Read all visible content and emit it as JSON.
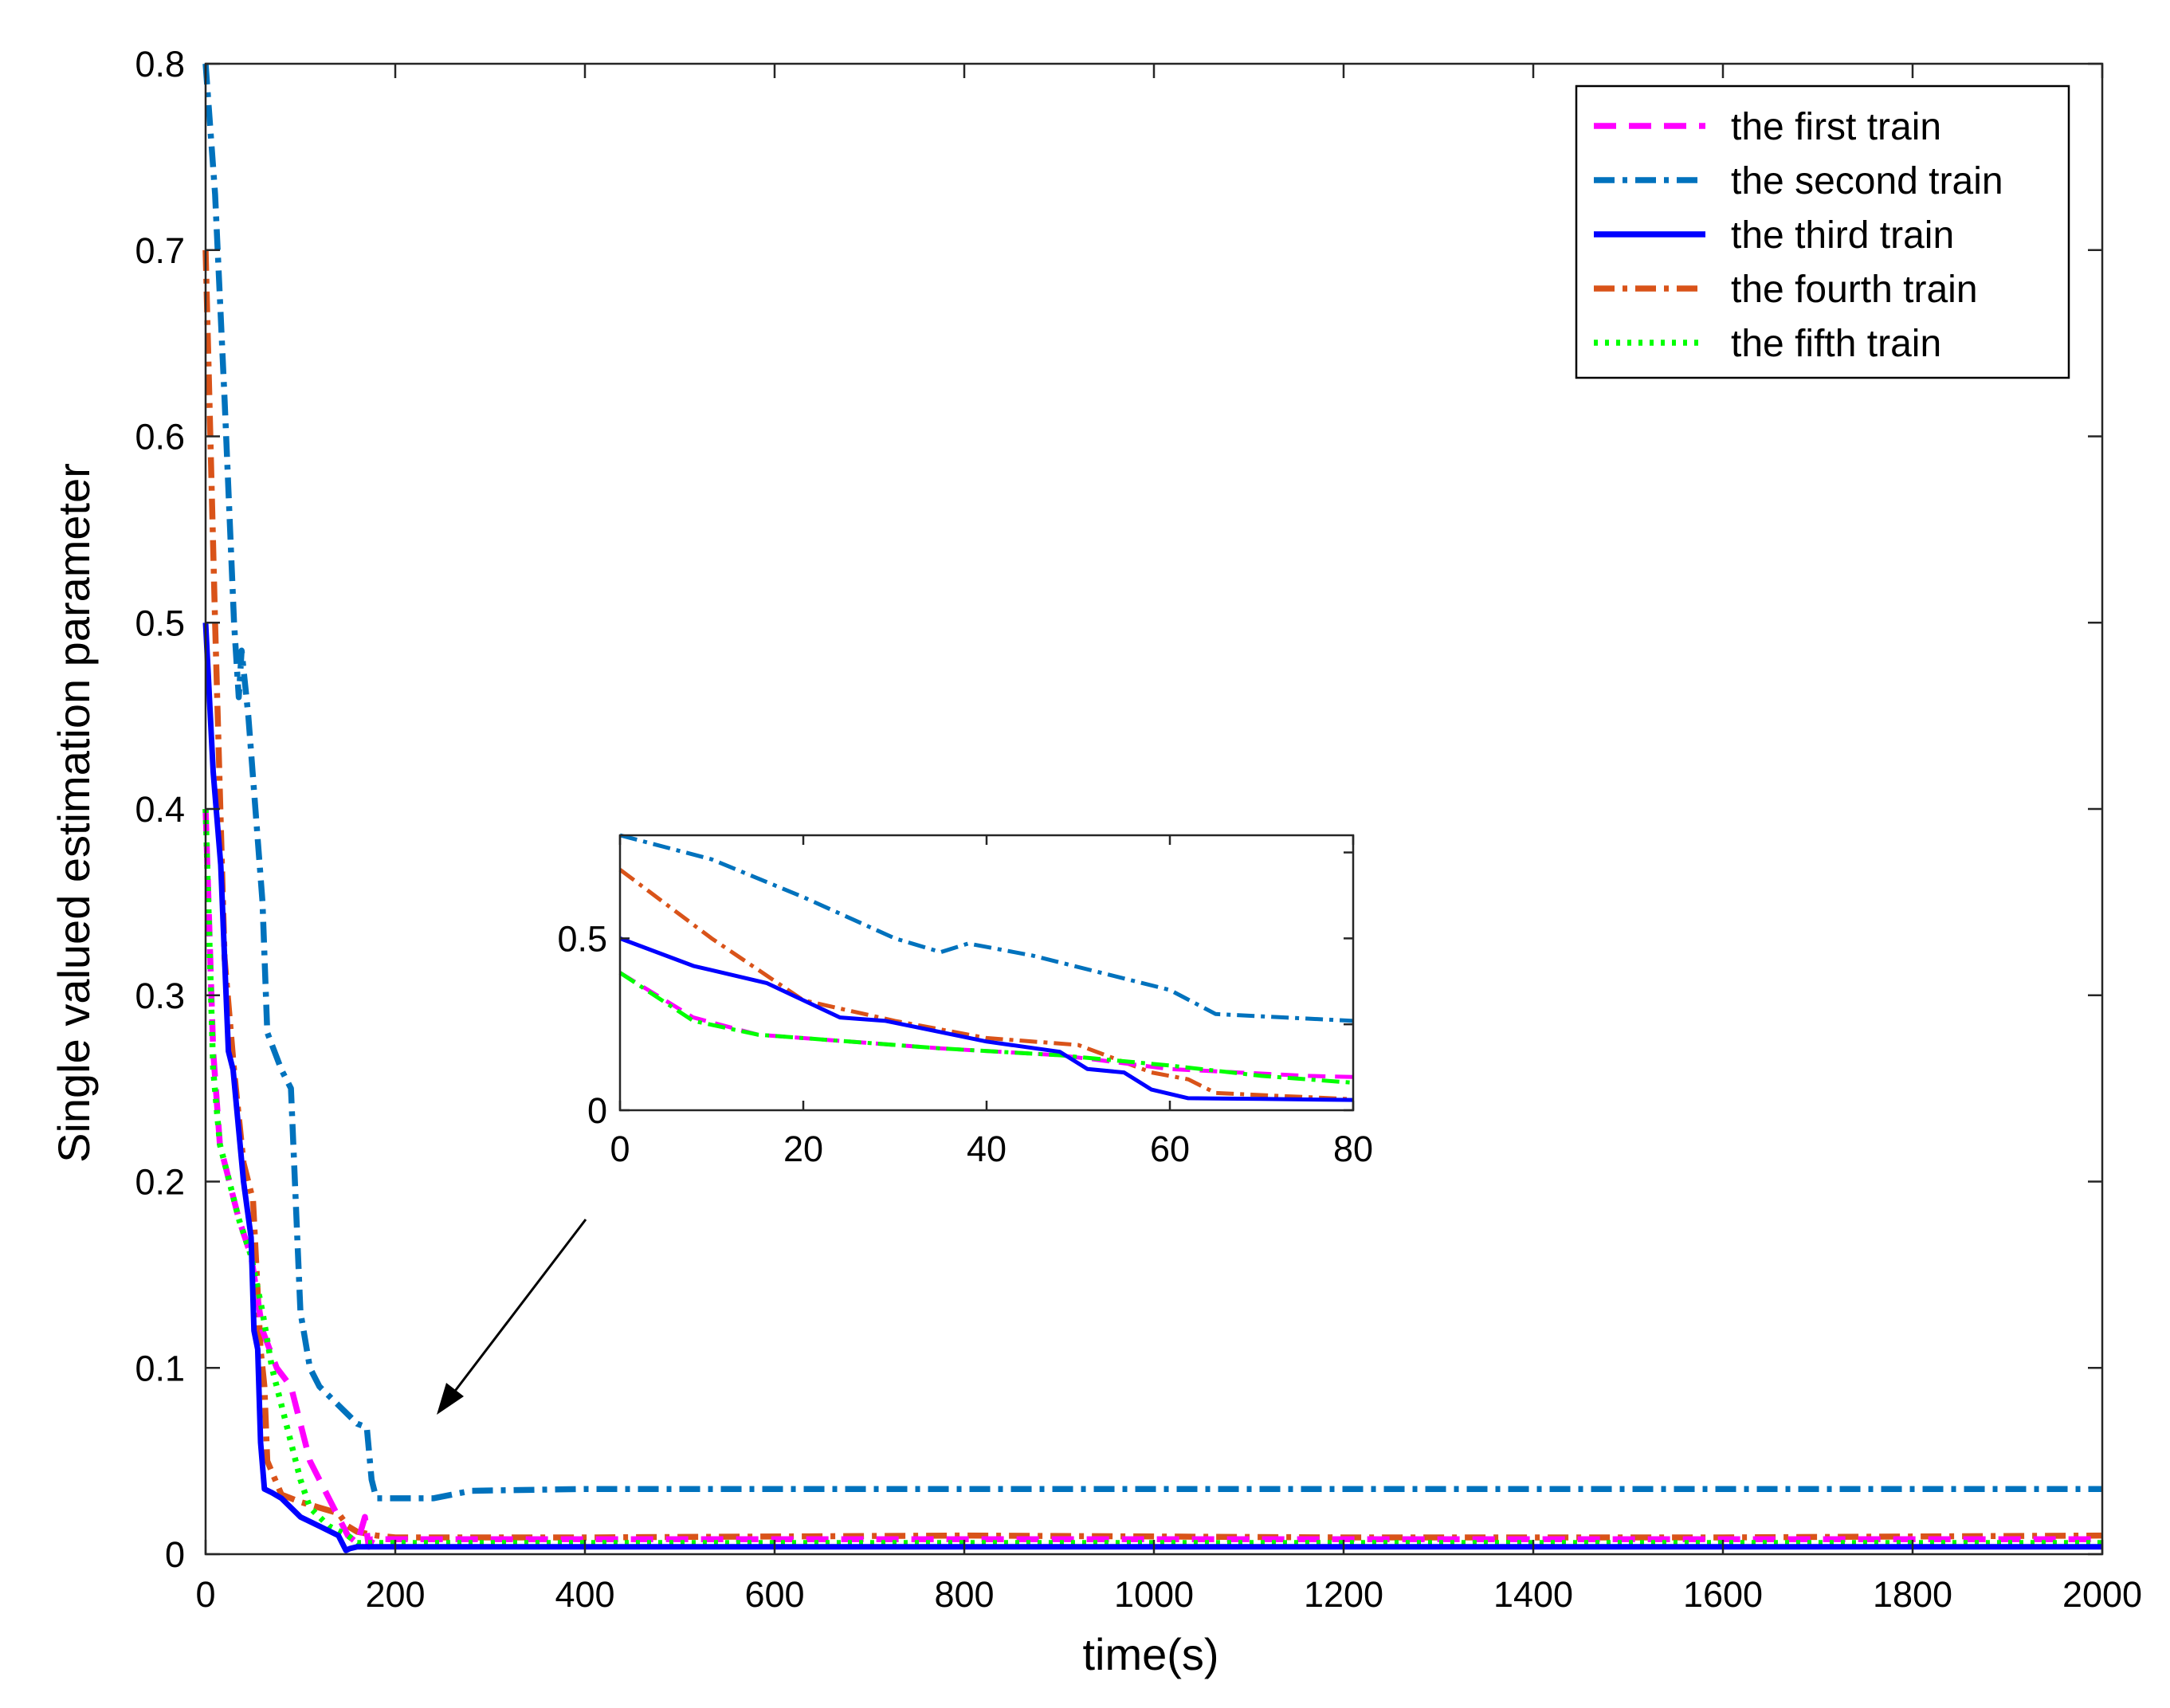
{
  "chart_data": {
    "type": "line",
    "xlabel": "time(s)",
    "ylabel": "Single valued estimation parameter",
    "xlim": [
      0,
      2000
    ],
    "ylim": [
      0,
      0.8
    ],
    "xticks": [
      0,
      200,
      400,
      600,
      800,
      1000,
      1200,
      1400,
      1600,
      1800,
      2000
    ],
    "xtick_labels": [
      "0",
      "200",
      "400",
      "600",
      "800",
      "1000",
      "1200",
      "1400",
      "1600",
      "1800",
      "2000"
    ],
    "yticks": [
      0,
      0.1,
      0.2,
      0.3,
      0.4,
      0.5,
      0.6,
      0.7,
      0.8
    ],
    "ytick_labels": [
      "0",
      "0.1",
      "0.2",
      "0.3",
      "0.4",
      "0.5",
      "0.6",
      "0.7",
      "0.8"
    ],
    "legend_position": "top-right",
    "series": [
      {
        "name": "the first train",
        "label": "the first train",
        "color": "#ff00ff",
        "style": "dashed",
        "x": [
          0,
          8,
          15,
          25,
          35,
          48,
          60,
          75,
          90,
          110,
          130,
          150,
          160,
          168,
          172,
          176,
          200,
          400,
          800,
          1200,
          1600,
          2000
        ],
        "y": [
          0.4,
          0.27,
          0.22,
          0.2,
          0.18,
          0.16,
          0.12,
          0.1,
          0.09,
          0.05,
          0.03,
          0.01,
          0.006,
          0.02,
          0.004,
          0.008,
          0.008,
          0.008,
          0.008,
          0.008,
          0.008,
          0.008
        ]
      },
      {
        "name": "the second train",
        "label": "the second train",
        "color": "#0072bd",
        "style": "dashdot",
        "x": [
          0,
          10,
          20,
          30,
          35,
          38,
          45,
          60,
          65,
          80,
          90,
          100,
          110,
          120,
          140,
          160,
          170,
          175,
          180,
          200,
          240,
          280,
          400,
          800,
          1200,
          1600,
          2000
        ],
        "y": [
          0.8,
          0.73,
          0.62,
          0.5,
          0.46,
          0.485,
          0.45,
          0.35,
          0.28,
          0.26,
          0.25,
          0.13,
          0.1,
          0.09,
          0.08,
          0.07,
          0.068,
          0.04,
          0.03,
          0.03,
          0.03,
          0.034,
          0.035,
          0.035,
          0.035,
          0.035,
          0.035
        ]
      },
      {
        "name": "the third train",
        "label": "the third train",
        "color": "#0000ff",
        "style": "solid",
        "x": [
          0,
          8,
          16,
          24,
          29,
          40,
          48,
          51,
          55,
          58,
          62,
          70,
          80,
          100,
          120,
          140,
          148,
          152,
          160,
          200,
          400,
          800,
          1200,
          1600,
          2000
        ],
        "y": [
          0.5,
          0.42,
          0.37,
          0.27,
          0.26,
          0.2,
          0.17,
          0.12,
          0.11,
          0.06,
          0.035,
          0.033,
          0.03,
          0.02,
          0.015,
          0.01,
          0.002,
          0.003,
          0.004,
          0.004,
          0.004,
          0.004,
          0.004,
          0.004,
          0.004
        ]
      },
      {
        "name": "the fourth train",
        "label": "the fourth train",
        "color": "#d95319",
        "style": "dashdot",
        "x": [
          0,
          10,
          20,
          30,
          40,
          50,
          58,
          62,
          65,
          80,
          100,
          120,
          140,
          150,
          160,
          180,
          200,
          400,
          800,
          1200,
          1600,
          2000
        ],
        "y": [
          0.7,
          0.5,
          0.32,
          0.26,
          0.21,
          0.19,
          0.11,
          0.09,
          0.05,
          0.032,
          0.028,
          0.025,
          0.022,
          0.015,
          0.012,
          0.01,
          0.009,
          0.009,
          0.01,
          0.009,
          0.009,
          0.01
        ]
      },
      {
        "name": "the fifth train",
        "label": "the fifth train",
        "color": "#00ff00",
        "style": "dotted",
        "x": [
          0,
          8,
          15,
          25,
          35,
          48,
          60,
          70,
          80,
          90,
          100,
          110,
          130,
          150,
          160,
          200,
          400,
          800,
          1200,
          1600,
          2000
        ],
        "y": [
          0.4,
          0.26,
          0.22,
          0.2,
          0.18,
          0.16,
          0.13,
          0.1,
          0.08,
          0.06,
          0.04,
          0.025,
          0.015,
          0.01,
          0.006,
          0.006,
          0.006,
          0.006,
          0.006,
          0.006,
          0.006
        ]
      }
    ],
    "inset": {
      "xlim": [
        0,
        80
      ],
      "ylim": [
        0,
        0.8
      ],
      "xticks": [
        0,
        20,
        40,
        60,
        80
      ],
      "xtick_labels": [
        "0",
        "20",
        "40",
        "60",
        "80"
      ],
      "yticks": [
        0,
        0.5
      ],
      "ytick_labels": [
        "0",
        "0.5"
      ]
    },
    "annotation": {
      "type": "arrow",
      "text": "",
      "points_to": "inset"
    }
  }
}
